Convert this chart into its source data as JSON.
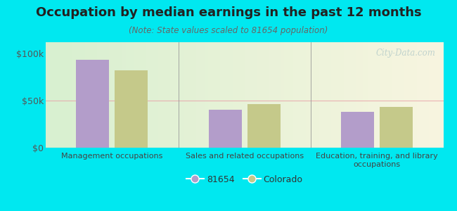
{
  "title": "Occupation by median earnings in the past 12 months",
  "subtitle": "(Note: State values scaled to 81654 population)",
  "categories": [
    "Management occupations",
    "Sales and related occupations",
    "Education, training, and library\noccupations"
  ],
  "values_81654": [
    93000,
    40000,
    38000
  ],
  "values_colorado": [
    82000,
    46000,
    43000
  ],
  "bar_color_81654": "#b39dca",
  "bar_color_colorado": "#c5c98a",
  "background_color": "#00e8f0",
  "ylabel_ticks": [
    0,
    50000,
    100000
  ],
  "ylabel_labels": [
    "$0",
    "$50k",
    "$100k"
  ],
  "ylim": [
    0,
    112000
  ],
  "legend_label_81654": "81654",
  "legend_label_colorado": "Colorado",
  "watermark": "City-Data.com",
  "grid_color": "#e8a0a8",
  "title_fontsize": 13,
  "subtitle_fontsize": 8.5
}
